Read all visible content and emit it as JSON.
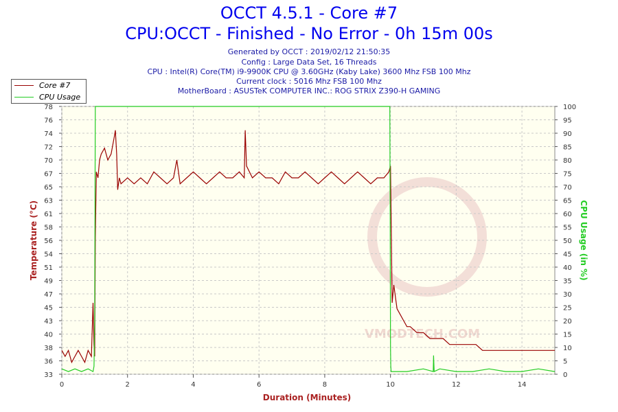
{
  "header": {
    "title": "OCCT 4.5.1 - Core #7",
    "subtitle": "CPU:OCCT - Finished - No Error - 0h 15m 00s",
    "info_lines": [
      "Generated by OCCT : 2019/02/12 21:50:35",
      "Config : Large Data Set, 16 Threads",
      "CPU : Intel(R) Core(TM) i9-9900K CPU @ 3.60GHz (Kaby Lake) 3600 Mhz FSB 100 Mhz",
      "Current clock : 5016 Mhz FSB 100 Mhz",
      "MotherBoard : ASUSTeK COMPUTER INC.: ROG STRIX Z390-H GAMING"
    ]
  },
  "legend": {
    "items": [
      {
        "label": "Core #7",
        "color": "#990000"
      },
      {
        "label": "CPU Usage",
        "color": "#22cc22"
      }
    ]
  },
  "watermark": "VMODTECH.COM",
  "chart_data": {
    "type": "line",
    "title": "OCCT 4.5.1 - Core #7",
    "xlabel": "Duration (Minutes)",
    "ylabel": "Temperature (°C)",
    "y2label": "CPU Usage (in %)",
    "xlim": [
      0,
      15
    ],
    "ylim": [
      33,
      78
    ],
    "y2lim": [
      0,
      100
    ],
    "x_ticks": [
      "0",
      "2",
      "4",
      "6",
      "8",
      "10",
      "12",
      "14"
    ],
    "y_ticks": [
      "33",
      "36",
      "38",
      "40",
      "43",
      "45",
      "47",
      "49",
      "51",
      "54",
      "56",
      "58",
      "61",
      "63",
      "65",
      "67",
      "70",
      "72",
      "74",
      "76",
      "78"
    ],
    "y2_ticks": [
      "0",
      "5",
      "10",
      "15",
      "20",
      "25",
      "30",
      "35",
      "40",
      "45",
      "50",
      "55",
      "60",
      "65",
      "70",
      "75",
      "80",
      "85",
      "90",
      "95",
      "100"
    ],
    "grid": true,
    "background": "#fffff0",
    "series": [
      {
        "name": "Core #7",
        "axis": "left",
        "color": "#990000",
        "x": [
          0,
          0.1,
          0.2,
          0.3,
          0.4,
          0.5,
          0.6,
          0.7,
          0.8,
          0.9,
          0.95,
          0.98,
          1.0,
          1.02,
          1.05,
          1.1,
          1.15,
          1.2,
          1.3,
          1.4,
          1.5,
          1.6,
          1.63,
          1.67,
          1.7,
          1.75,
          1.8,
          2.0,
          2.2,
          2.4,
          2.6,
          2.8,
          3.0,
          3.2,
          3.4,
          3.5,
          3.6,
          3.8,
          4.0,
          4.2,
          4.4,
          4.6,
          4.8,
          5.0,
          5.2,
          5.4,
          5.55,
          5.58,
          5.62,
          5.8,
          6.0,
          6.2,
          6.4,
          6.6,
          6.8,
          7.0,
          7.2,
          7.4,
          7.6,
          7.8,
          8.0,
          8.2,
          8.4,
          8.6,
          8.8,
          9.0,
          9.2,
          9.4,
          9.6,
          9.8,
          9.95,
          10.0,
          10.05,
          10.1,
          10.2,
          10.3,
          10.4,
          10.5,
          10.6,
          10.8,
          11.0,
          11.2,
          11.4,
          11.6,
          11.8,
          12.0,
          12.2,
          12.4,
          12.6,
          12.8,
          13.0,
          13.2,
          13.4,
          13.6,
          13.8,
          14.0,
          14.2,
          14.4,
          14.6,
          14.8,
          15.0
        ],
        "values": [
          37,
          36,
          37,
          35,
          36,
          37,
          36,
          35,
          37,
          36,
          45,
          38,
          36,
          56,
          67,
          66,
          69,
          70,
          71,
          69,
          70,
          73,
          74,
          70,
          64,
          66,
          65,
          66,
          65,
          66,
          65,
          67,
          66,
          65,
          66,
          69,
          65,
          66,
          67,
          66,
          65,
          66,
          67,
          66,
          66,
          67,
          66,
          74,
          68,
          66,
          67,
          66,
          66,
          65,
          67,
          66,
          66,
          67,
          66,
          65,
          66,
          67,
          66,
          65,
          66,
          67,
          66,
          65,
          66,
          66,
          67,
          68,
          45,
          48,
          44,
          43,
          42,
          41,
          41,
          40,
          40,
          39,
          39,
          39,
          38,
          38,
          38,
          38,
          38,
          37,
          37,
          37,
          37,
          37,
          37,
          37,
          37,
          37,
          37,
          37,
          37
        ]
      },
      {
        "name": "CPU Usage",
        "axis": "right",
        "color": "#22cc22",
        "x": [
          0,
          0.2,
          0.4,
          0.6,
          0.8,
          0.95,
          0.98,
          1.0,
          1.01,
          1.02,
          2.0,
          4.0,
          6.0,
          8.0,
          9.9,
          9.98,
          9.99,
          10.0,
          10.01,
          10.02,
          10.5,
          11.0,
          11.3,
          11.31,
          11.33,
          11.5,
          12.0,
          12.5,
          13.0,
          13.5,
          14.0,
          14.5,
          15.0
        ],
        "values": [
          2,
          1,
          2,
          1,
          2,
          1,
          3,
          20,
          60,
          100,
          100,
          100,
          100,
          100,
          100,
          100,
          60,
          10,
          3,
          1,
          1,
          2,
          1,
          7,
          1,
          2,
          1,
          1,
          2,
          1,
          1,
          2,
          1
        ]
      }
    ]
  }
}
